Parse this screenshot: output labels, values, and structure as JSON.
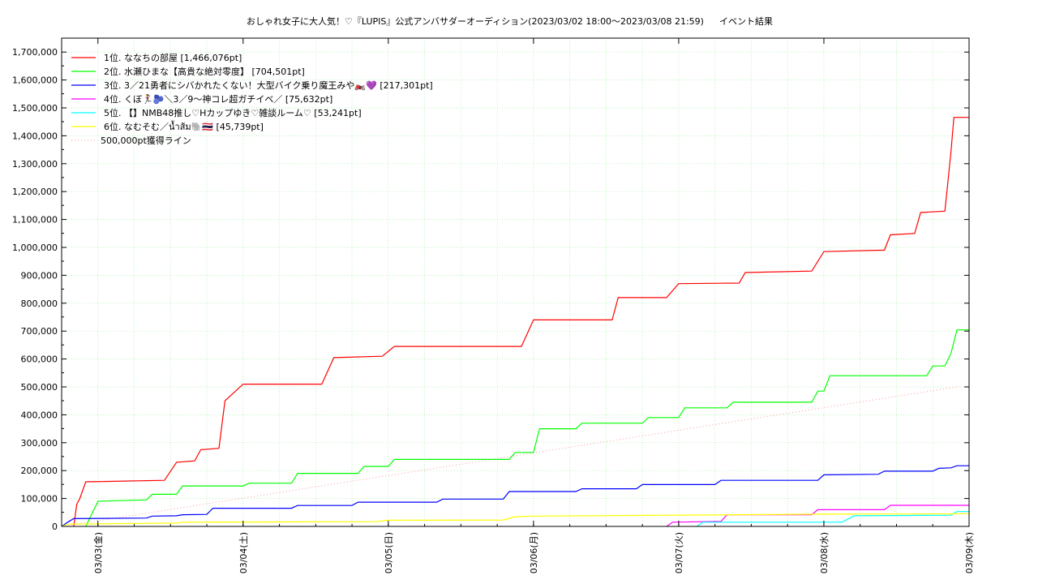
{
  "chart_data": {
    "type": "line",
    "title": "おしゃれ女子に大人気！♡『LUPIS』公式アンバサダーオーディション(2023/03/02 18:00〜2023/03/08 21:59)",
    "subtitle": "イベント結果",
    "xlabel": "",
    "ylabel": "",
    "ylim": [
      0,
      1750000
    ],
    "xlim": [
      "2023-03-02T18:00",
      "2023-03-09T00:00"
    ],
    "grid": true,
    "legend_position": "top-left",
    "x_ticks": [
      "03/03(金)",
      "03/04(土)",
      "03/05(日)",
      "03/06(月)",
      "03/07(火)",
      "03/08(水)",
      "03/09(木)"
    ],
    "y_ticks": [
      "0",
      "100,000",
      "200,000",
      "300,000",
      "400,000",
      "500,000",
      "600,000",
      "700,000",
      "800,000",
      "900,000",
      "1,000,000",
      "1,100,000",
      "1,200,000",
      "1,300,000",
      "1,400,000",
      "1,500,000",
      "1,600,000",
      "1,700,000"
    ],
    "reference_line": {
      "label": "500,000pt獲得ライン",
      "color": "#ff9999",
      "points": [
        [
          "2023-03-02T18:00",
          0
        ],
        [
          "2023-03-08T21:59",
          500000
        ]
      ]
    },
    "series": [
      {
        "name": "1位. ななちの部屋 [1,466,076pt]",
        "color": "#ff0000",
        "points": [
          [
            "2023-03-02T20:00",
            0
          ],
          [
            "2023-03-02T20:30",
            80000
          ],
          [
            "2023-03-02T21:00",
            100000
          ],
          [
            "2023-03-02T22:00",
            160000
          ],
          [
            "2023-03-03T11:00",
            165000
          ],
          [
            "2023-03-03T13:00",
            230000
          ],
          [
            "2023-03-03T16:00",
            235000
          ],
          [
            "2023-03-03T17:00",
            275000
          ],
          [
            "2023-03-03T20:00",
            280000
          ],
          [
            "2023-03-03T21:00",
            450000
          ],
          [
            "2023-03-04T00:00",
            510000
          ],
          [
            "2023-03-04T13:00",
            510000
          ],
          [
            "2023-03-04T15:00",
            605000
          ],
          [
            "2023-03-04T23:00",
            610000
          ],
          [
            "2023-03-05T01:00",
            645000
          ],
          [
            "2023-03-05T22:00",
            645000
          ],
          [
            "2023-03-06T00:00",
            740000
          ],
          [
            "2023-03-06T13:00",
            740000
          ],
          [
            "2023-03-06T14:00",
            820000
          ],
          [
            "2023-03-06T22:00",
            820000
          ],
          [
            "2023-03-07T00:00",
            870000
          ],
          [
            "2023-03-07T10:00",
            872000
          ],
          [
            "2023-03-07T11:00",
            910000
          ],
          [
            "2023-03-07T22:00",
            915000
          ],
          [
            "2023-03-08T00:00",
            985000
          ],
          [
            "2023-03-08T10:00",
            990000
          ],
          [
            "2023-03-08T11:00",
            1045000
          ],
          [
            "2023-03-08T15:00",
            1050000
          ],
          [
            "2023-03-08T16:00",
            1125000
          ],
          [
            "2023-03-08T20:00",
            1130000
          ],
          [
            "2023-03-08T21:00",
            1340000
          ],
          [
            "2023-03-08T21:30",
            1466076
          ],
          [
            "2023-03-09T00:00",
            1466076
          ]
        ]
      },
      {
        "name": "2位. 水瀬ひまな【高貴な絶対零度】 [704,501pt]",
        "color": "#00ff00",
        "points": [
          [
            "2023-03-02T22:00",
            0
          ],
          [
            "2023-03-03T00:00",
            90000
          ],
          [
            "2023-03-03T08:00",
            95000
          ],
          [
            "2023-03-03T09:00",
            115000
          ],
          [
            "2023-03-03T13:00",
            115000
          ],
          [
            "2023-03-03T14:00",
            145000
          ],
          [
            "2023-03-04T00:00",
            145000
          ],
          [
            "2023-03-04T01:00",
            155000
          ],
          [
            "2023-03-04T08:00",
            155000
          ],
          [
            "2023-03-04T09:00",
            190000
          ],
          [
            "2023-03-04T19:00",
            190000
          ],
          [
            "2023-03-04T20:00",
            215000
          ],
          [
            "2023-03-05T00:00",
            215000
          ],
          [
            "2023-03-05T01:00",
            240000
          ],
          [
            "2023-03-05T20:00",
            240000
          ],
          [
            "2023-03-05T21:00",
            265000
          ],
          [
            "2023-03-06T00:00",
            265000
          ],
          [
            "2023-03-06T01:00",
            350000
          ],
          [
            "2023-03-06T07:00",
            350000
          ],
          [
            "2023-03-06T08:00",
            370000
          ],
          [
            "2023-03-06T18:00",
            370000
          ],
          [
            "2023-03-06T19:00",
            390000
          ],
          [
            "2023-03-07T00:00",
            390000
          ],
          [
            "2023-03-07T01:00",
            425000
          ],
          [
            "2023-03-07T08:00",
            425000
          ],
          [
            "2023-03-07T09:00",
            445000
          ],
          [
            "2023-03-07T22:00",
            445000
          ],
          [
            "2023-03-07T23:00",
            485000
          ],
          [
            "2023-03-08T00:00",
            485000
          ],
          [
            "2023-03-08T01:00",
            540000
          ],
          [
            "2023-03-08T17:00",
            540000
          ],
          [
            "2023-03-08T18:00",
            575000
          ],
          [
            "2023-03-08T20:00",
            575000
          ],
          [
            "2023-03-08T21:00",
            620000
          ],
          [
            "2023-03-08T22:00",
            704501
          ],
          [
            "2023-03-09T00:00",
            704501
          ]
        ]
      },
      {
        "name": "3位. 3／21勇者にシバかれたくない！大型バイク乗り魔王みや🏍️💜 [217,301pt]",
        "color": "#0000ff",
        "points": [
          [
            "2023-03-02T18:00",
            0
          ],
          [
            "2023-03-02T19:00",
            15000
          ],
          [
            "2023-03-02T20:00",
            28000
          ],
          [
            "2023-03-03T08:00",
            30000
          ],
          [
            "2023-03-03T09:00",
            37000
          ],
          [
            "2023-03-03T13:00",
            38000
          ],
          [
            "2023-03-03T14:00",
            42000
          ],
          [
            "2023-03-03T18:00",
            43000
          ],
          [
            "2023-03-03T19:00",
            65000
          ],
          [
            "2023-03-04T08:00",
            65000
          ],
          [
            "2023-03-04T09:00",
            75000
          ],
          [
            "2023-03-04T18:00",
            75000
          ],
          [
            "2023-03-04T19:00",
            87000
          ],
          [
            "2023-03-05T08:00",
            87000
          ],
          [
            "2023-03-05T09:00",
            98000
          ],
          [
            "2023-03-05T19:00",
            98000
          ],
          [
            "2023-03-05T20:00",
            125000
          ],
          [
            "2023-03-06T07:00",
            125000
          ],
          [
            "2023-03-06T08:00",
            135000
          ],
          [
            "2023-03-06T17:00",
            135000
          ],
          [
            "2023-03-06T18:00",
            150000
          ],
          [
            "2023-03-07T06:00",
            150000
          ],
          [
            "2023-03-07T07:00",
            165000
          ],
          [
            "2023-03-07T23:00",
            165000
          ],
          [
            "2023-03-08T00:00",
            185000
          ],
          [
            "2023-03-08T09:00",
            187000
          ],
          [
            "2023-03-08T10:00",
            198000
          ],
          [
            "2023-03-08T18:00",
            198000
          ],
          [
            "2023-03-08T19:00",
            208000
          ],
          [
            "2023-03-08T21:00",
            210000
          ],
          [
            "2023-03-08T22:00",
            217301
          ],
          [
            "2023-03-09T00:00",
            217301
          ]
        ]
      },
      {
        "name": "4位. くぼ🏃‍♀️🫐＼3／9〜神コレ超ガチイベ／ [75,632pt]",
        "color": "#ff00ff",
        "points": [
          [
            "2023-03-06T22:00",
            0
          ],
          [
            "2023-03-06T23:00",
            15000
          ],
          [
            "2023-03-07T07:00",
            18000
          ],
          [
            "2023-03-07T08:00",
            42000
          ],
          [
            "2023-03-07T22:00",
            42000
          ],
          [
            "2023-03-07T23:00",
            60000
          ],
          [
            "2023-03-08T10:00",
            60000
          ],
          [
            "2023-03-08T11:00",
            75632
          ],
          [
            "2023-03-09T00:00",
            75632
          ]
        ]
      },
      {
        "name": "5位. 【】NMB48推し♡Hカップゆき♡雑談ルーム♡ [53,241pt]",
        "color": "#00ffff",
        "points": [
          [
            "2023-03-07T03:00",
            0
          ],
          [
            "2023-03-07T04:00",
            15000
          ],
          [
            "2023-03-08T03:00",
            15000
          ],
          [
            "2023-03-08T05:00",
            38000
          ],
          [
            "2023-03-08T21:00",
            40000
          ],
          [
            "2023-03-08T22:00",
            53241
          ],
          [
            "2023-03-09T00:00",
            53241
          ]
        ]
      },
      {
        "name": "6位. なむそむ／น้ำส้ม🐘🇹🇭 [45,739pt]",
        "color": "#ffff00",
        "points": [
          [
            "2023-03-02T18:00",
            0
          ],
          [
            "2023-03-02T19:00",
            8000
          ],
          [
            "2023-03-03T13:00",
            12000
          ],
          [
            "2023-03-03T14:00",
            15000
          ],
          [
            "2023-03-04T22:00",
            17000
          ],
          [
            "2023-03-05T00:00",
            22000
          ],
          [
            "2023-03-05T19:00",
            23000
          ],
          [
            "2023-03-05T21:00",
            35000
          ],
          [
            "2023-03-06T00:00",
            37000
          ],
          [
            "2023-03-08T00:00",
            44000
          ],
          [
            "2023-03-08T21:00",
            45000
          ],
          [
            "2023-03-08T22:00",
            45739
          ],
          [
            "2023-03-09T00:00",
            45739
          ]
        ]
      }
    ]
  }
}
